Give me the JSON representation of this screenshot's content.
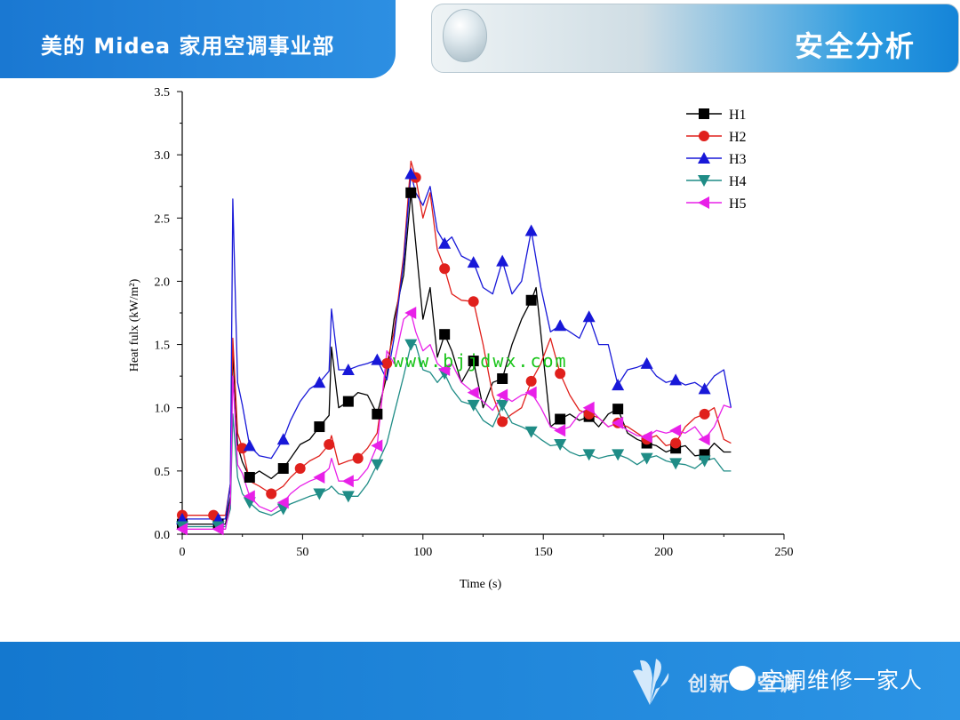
{
  "header": {
    "brand": "美的 Midea 家用空调事业部",
    "section_title": "安全分析"
  },
  "footer": {
    "slogan": "创新 · 空调",
    "wechat_account": "空调维修一家人"
  },
  "watermark": "www.bjjdwx.com",
  "colors": {
    "H1": "#000000",
    "H2": "#e0201c",
    "H3": "#1818d8",
    "H4": "#1f8c86",
    "H5": "#e820e8",
    "header_blue": "#1a78d2"
  },
  "chart_data": {
    "type": "line",
    "title": "",
    "xlabel": "Time (s)",
    "ylabel": "Heat fulx (kW/m²)",
    "xlim": [
      0,
      250
    ],
    "ylim": [
      0,
      3.5
    ],
    "xticks": [
      0,
      50,
      100,
      150,
      200,
      250
    ],
    "yticks": [
      0.0,
      0.5,
      1.0,
      1.5,
      2.0,
      2.5,
      3.0,
      3.5
    ],
    "legend_position": "top-right",
    "grid": false,
    "series": [
      {
        "name": "H1",
        "marker": "square",
        "x": [
          0,
          5,
          10,
          15,
          18,
          20,
          21,
          23,
          25,
          28,
          32,
          37,
          42,
          45,
          49,
          53,
          57,
          61,
          62,
          65,
          69,
          73,
          77,
          81,
          85,
          88,
          92,
          95,
          97,
          100,
          103,
          106,
          109,
          112,
          116,
          121,
          125,
          129,
          133,
          137,
          141,
          145,
          147,
          150,
          153,
          157,
          161,
          165,
          169,
          173,
          177,
          181,
          185,
          189,
          193,
          197,
          201,
          205,
          209,
          213,
          217,
          221,
          225,
          228
        ],
        "y": [
          0.08,
          0.08,
          0.08,
          0.08,
          0.08,
          0.3,
          1.45,
          0.7,
          0.57,
          0.45,
          0.5,
          0.44,
          0.52,
          0.6,
          0.71,
          0.75,
          0.85,
          0.94,
          1.48,
          1.0,
          1.05,
          1.12,
          1.1,
          0.95,
          1.25,
          1.7,
          2.05,
          2.7,
          2.3,
          1.7,
          1.95,
          1.4,
          1.58,
          1.45,
          1.2,
          1.37,
          1.0,
          1.2,
          1.23,
          1.5,
          1.7,
          1.85,
          1.95,
          1.4,
          0.85,
          0.91,
          0.95,
          0.9,
          0.93,
          0.85,
          0.95,
          0.99,
          0.8,
          0.75,
          0.72,
          0.7,
          0.65,
          0.68,
          0.7,
          0.62,
          0.63,
          0.72,
          0.65,
          0.65
        ]
      },
      {
        "name": "H2",
        "marker": "circle",
        "x": [
          0,
          5,
          10,
          13,
          18,
          20,
          21,
          23,
          25,
          28,
          32,
          37,
          42,
          45,
          49,
          53,
          57,
          61,
          62,
          65,
          69,
          73,
          77,
          81,
          85,
          88,
          92,
          95,
          97,
          100,
          103,
          106,
          109,
          112,
          116,
          121,
          125,
          129,
          133,
          137,
          141,
          145,
          149,
          153,
          157,
          161,
          165,
          169,
          173,
          177,
          181,
          185,
          189,
          193,
          197,
          201,
          205,
          209,
          213,
          217,
          221,
          225,
          228
        ],
        "y": [
          0.15,
          0.15,
          0.15,
          0.15,
          0.15,
          0.4,
          1.55,
          0.8,
          0.68,
          0.42,
          0.38,
          0.32,
          0.38,
          0.45,
          0.52,
          0.58,
          0.62,
          0.71,
          0.78,
          0.55,
          0.58,
          0.6,
          0.68,
          0.8,
          1.35,
          1.6,
          2.2,
          2.95,
          2.82,
          2.5,
          2.7,
          2.25,
          2.1,
          1.9,
          1.85,
          1.84,
          1.5,
          1.1,
          0.89,
          0.95,
          1.0,
          1.21,
          1.35,
          1.55,
          1.27,
          1.1,
          0.98,
          0.95,
          0.92,
          0.85,
          0.88,
          0.85,
          0.8,
          0.75,
          0.78,
          0.7,
          0.72,
          0.85,
          0.92,
          0.95,
          1.0,
          0.75,
          0.72
        ]
      },
      {
        "name": "H3",
        "marker": "triangle-up",
        "x": [
          0,
          5,
          10,
          15,
          18,
          20,
          21,
          23,
          25,
          28,
          32,
          37,
          42,
          45,
          49,
          53,
          57,
          61,
          62,
          65,
          69,
          73,
          77,
          81,
          85,
          88,
          92,
          95,
          97,
          100,
          103,
          106,
          109,
          112,
          116,
          121,
          125,
          129,
          133,
          137,
          141,
          145,
          149,
          153,
          157,
          161,
          165,
          169,
          173,
          177,
          181,
          185,
          189,
          193,
          197,
          201,
          205,
          209,
          213,
          217,
          221,
          225,
          228
        ],
        "y": [
          0.12,
          0.12,
          0.12,
          0.12,
          0.12,
          0.4,
          2.65,
          1.2,
          1.02,
          0.7,
          0.62,
          0.6,
          0.75,
          0.9,
          1.05,
          1.15,
          1.2,
          1.29,
          1.78,
          1.3,
          1.3,
          1.33,
          1.35,
          1.38,
          1.22,
          1.55,
          2.15,
          2.85,
          2.7,
          2.6,
          2.75,
          2.4,
          2.3,
          2.35,
          2.2,
          2.15,
          1.95,
          1.9,
          2.16,
          1.9,
          2.0,
          2.4,
          1.95,
          1.6,
          1.65,
          1.6,
          1.55,
          1.72,
          1.5,
          1.5,
          1.18,
          1.3,
          1.32,
          1.35,
          1.25,
          1.2,
          1.22,
          1.18,
          1.2,
          1.15,
          1.25,
          1.3,
          1.0
        ]
      },
      {
        "name": "H4",
        "marker": "triangle-down",
        "x": [
          0,
          5,
          10,
          15,
          18,
          20,
          21,
          23,
          25,
          28,
          32,
          37,
          42,
          45,
          49,
          53,
          57,
          61,
          62,
          65,
          69,
          73,
          77,
          81,
          85,
          88,
          92,
          95,
          97,
          100,
          103,
          106,
          109,
          112,
          116,
          121,
          125,
          129,
          133,
          137,
          141,
          145,
          149,
          153,
          157,
          161,
          165,
          169,
          173,
          177,
          181,
          185,
          189,
          193,
          197,
          201,
          205,
          209,
          213,
          217,
          221,
          225,
          228
        ],
        "y": [
          0.06,
          0.06,
          0.06,
          0.06,
          0.06,
          0.2,
          0.95,
          0.45,
          0.32,
          0.25,
          0.18,
          0.15,
          0.2,
          0.24,
          0.27,
          0.3,
          0.32,
          0.36,
          0.38,
          0.32,
          0.3,
          0.3,
          0.4,
          0.55,
          0.72,
          0.95,
          1.25,
          1.5,
          1.5,
          1.3,
          1.28,
          1.2,
          1.27,
          1.15,
          1.05,
          1.02,
          0.9,
          0.85,
          1.02,
          0.88,
          0.85,
          0.81,
          0.75,
          0.7,
          0.71,
          0.65,
          0.62,
          0.63,
          0.6,
          0.62,
          0.63,
          0.6,
          0.55,
          0.6,
          0.62,
          0.58,
          0.56,
          0.55,
          0.52,
          0.58,
          0.6,
          0.5,
          0.5
        ]
      },
      {
        "name": "H5",
        "marker": "triangle-left",
        "x": [
          0,
          5,
          10,
          15,
          18,
          20,
          21,
          23,
          25,
          28,
          32,
          37,
          42,
          45,
          49,
          53,
          57,
          61,
          62,
          65,
          69,
          73,
          77,
          81,
          85,
          88,
          92,
          95,
          97,
          100,
          103,
          106,
          109,
          112,
          116,
          121,
          125,
          129,
          133,
          137,
          141,
          145,
          149,
          153,
          157,
          161,
          165,
          169,
          173,
          177,
          181,
          185,
          189,
          193,
          197,
          201,
          205,
          209,
          213,
          217,
          221,
          225,
          228
        ],
        "y": [
          0.04,
          0.04,
          0.04,
          0.04,
          0.04,
          0.25,
          1.25,
          0.55,
          0.48,
          0.3,
          0.22,
          0.18,
          0.25,
          0.32,
          0.38,
          0.42,
          0.45,
          0.52,
          0.6,
          0.42,
          0.42,
          0.43,
          0.52,
          0.7,
          1.45,
          1.35,
          1.7,
          1.75,
          1.6,
          1.45,
          1.5,
          1.35,
          1.3,
          1.35,
          1.2,
          1.12,
          1.05,
          0.98,
          1.1,
          1.05,
          1.1,
          1.12,
          1.0,
          0.85,
          0.82,
          0.85,
          0.95,
          1.0,
          0.92,
          0.85,
          0.88,
          0.82,
          0.78,
          0.77,
          0.82,
          0.8,
          0.82,
          0.8,
          0.85,
          0.75,
          0.85,
          1.02,
          1.0
        ]
      }
    ]
  }
}
